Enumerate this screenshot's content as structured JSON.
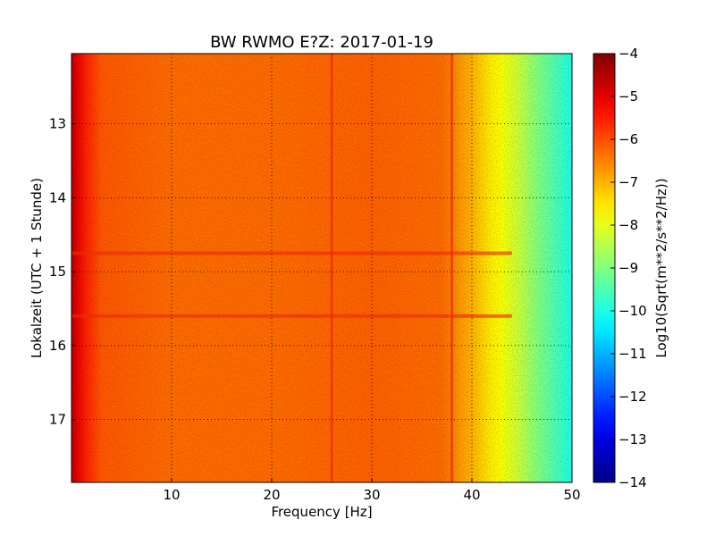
{
  "chart_data": {
    "type": "heatmap",
    "title": "BW RWMO E?Z: 2017-01-19",
    "xlabel": "Frequency [Hz]",
    "ylabel": "Lokalzeit (UTC + 1 Stunde)",
    "xlim": [
      0,
      50
    ],
    "ylim": [
      12.05,
      17.85
    ],
    "y_inverted": true,
    "x_ticks": [
      10,
      20,
      30,
      40,
      50
    ],
    "y_ticks": [
      13,
      14,
      15,
      16,
      17
    ],
    "grid": true,
    "colormap": "jet",
    "colorbar": {
      "label": "Log10(Sqrt(m**2/s**2/Hz))",
      "range": [
        -14,
        -4
      ],
      "ticks": [
        -4,
        -5,
        -6,
        -7,
        -8,
        -9,
        -10,
        -11,
        -12,
        -13,
        -14
      ]
    },
    "frequency_profile": {
      "frequency_hz": [
        0,
        0.5,
        1.5,
        3,
        10,
        20,
        30,
        37,
        38,
        39,
        40,
        41,
        42,
        43,
        44,
        45,
        46,
        47,
        48,
        49,
        50
      ],
      "log10_amplitude": [
        -4.6,
        -5.0,
        -5.6,
        -6.1,
        -6.3,
        -6.3,
        -6.2,
        -6.3,
        -6.5,
        -6.8,
        -7.0,
        -7.3,
        -7.6,
        -7.8,
        -8.1,
        -8.4,
        -8.8,
        -9.1,
        -9.4,
        -9.7,
        -10.0
      ]
    },
    "features": [
      {
        "frequency_hz": 26.0,
        "note": "narrow persistent line"
      },
      {
        "frequency_hz": 38.0,
        "note": "narrow persistent line"
      },
      {
        "time_h": 15.6,
        "note": "broadband burst"
      },
      {
        "time_h": 14.75,
        "note": "low-frequency burst"
      }
    ]
  },
  "colors": {
    "background": "#ffffff",
    "axis": "#000000"
  }
}
